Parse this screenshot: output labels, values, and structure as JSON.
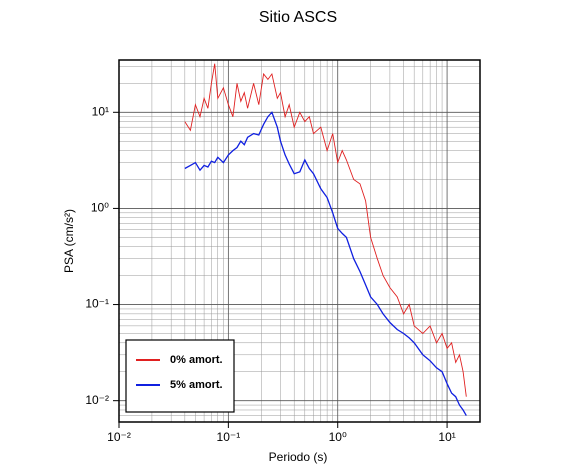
{
  "chart_data": {
    "type": "line",
    "title": "Sitio ASCS",
    "x_label": "Periodo (s)",
    "y_label": "PSA (cm/s²)",
    "xlog": true,
    "ylog": true,
    "grid": true,
    "legend": "lower-left",
    "xlim": [
      0.01,
      20
    ],
    "ylim": [
      0.006,
      35
    ],
    "xticks": [
      {
        "value": 0.01,
        "label": "10⁻²"
      },
      {
        "value": 0.1,
        "label": "10⁻¹"
      },
      {
        "value": 1,
        "label": "10⁰"
      },
      {
        "value": 10,
        "label": "10¹"
      }
    ],
    "yticks": [
      {
        "value": 0.01,
        "label": "10⁻²"
      },
      {
        "value": 0.1,
        "label": "10⁻¹"
      },
      {
        "value": 1,
        "label": "10⁰"
      },
      {
        "value": 10,
        "label": "10¹"
      }
    ],
    "x": [
      0.04,
      0.045,
      0.05,
      0.055,
      0.06,
      0.065,
      0.07,
      0.075,
      0.08,
      0.09,
      0.1,
      0.11,
      0.12,
      0.13,
      0.14,
      0.15,
      0.17,
      0.19,
      0.21,
      0.23,
      0.25,
      0.28,
      0.3,
      0.33,
      0.36,
      0.4,
      0.45,
      0.5,
      0.55,
      0.6,
      0.7,
      0.8,
      0.9,
      1.0,
      1.1,
      1.2,
      1.4,
      1.6,
      1.8,
      2.0,
      2.3,
      2.6,
      3.0,
      3.5,
      4,
      4.5,
      5,
      6,
      7,
      8,
      9,
      10,
      11,
      12,
      13,
      14,
      15
    ],
    "series": [
      {
        "name": "0% amort.",
        "color": "#e02020",
        "values": [
          8,
          6.5,
          12,
          9,
          14,
          11,
          20,
          32,
          14,
          18,
          12,
          9,
          20,
          13,
          16,
          11,
          20,
          12,
          25,
          22,
          25,
          14,
          16,
          9,
          12,
          7,
          10,
          8,
          9,
          6,
          7,
          4,
          6,
          3,
          4,
          3.2,
          2,
          1.8,
          1.2,
          0.5,
          0.3,
          0.2,
          0.15,
          0.12,
          0.08,
          0.1,
          0.06,
          0.05,
          0.06,
          0.04,
          0.05,
          0.035,
          0.04,
          0.025,
          0.03,
          0.02,
          0.011
        ]
      },
      {
        "name": "5% amort.",
        "color": "#1020e0",
        "values": [
          2.6,
          2.8,
          3,
          2.5,
          2.8,
          2.7,
          3.1,
          3,
          3.4,
          3,
          3.6,
          4,
          4.3,
          5,
          4.6,
          5.5,
          6,
          5.8,
          7.5,
          9,
          10,
          7,
          5,
          3.6,
          2.9,
          2.3,
          2.4,
          3.2,
          2.6,
          2.3,
          1.6,
          1.3,
          0.9,
          0.62,
          0.55,
          0.5,
          0.3,
          0.22,
          0.16,
          0.12,
          0.1,
          0.08,
          0.065,
          0.055,
          0.05,
          0.045,
          0.04,
          0.03,
          0.026,
          0.022,
          0.02,
          0.015,
          0.012,
          0.011,
          0.009,
          0.008,
          0.007
        ]
      }
    ]
  }
}
